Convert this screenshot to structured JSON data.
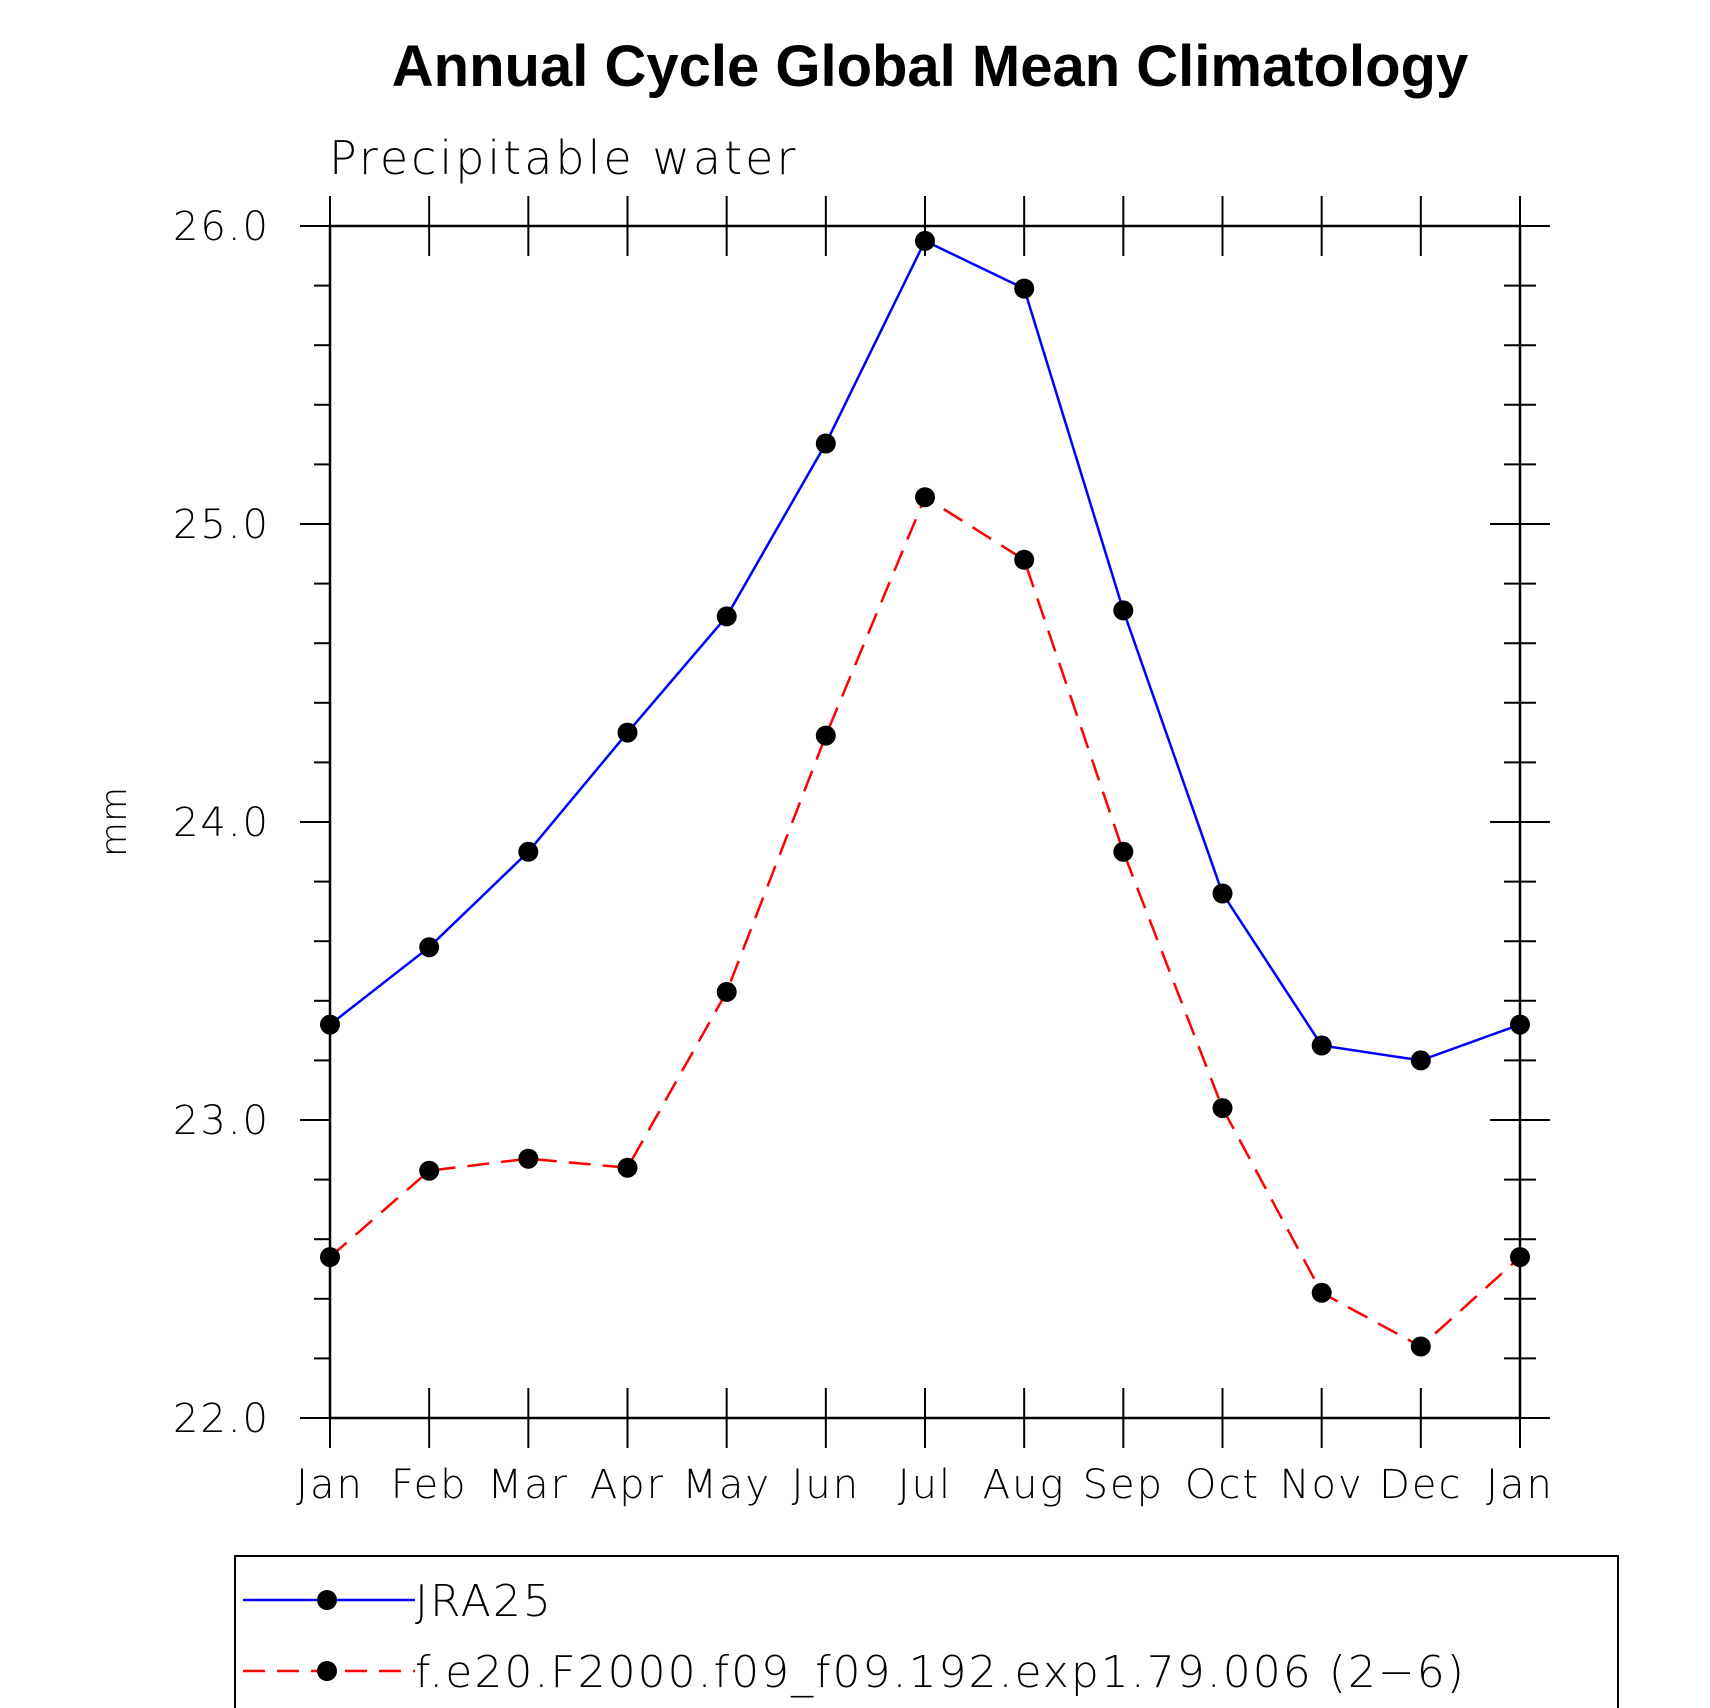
{
  "chart_data": {
    "type": "line",
    "title": "Annual Cycle Global Mean Climatology",
    "subtitle": "Precipitable water",
    "xlabel": "",
    "ylabel": "mm",
    "categories": [
      "Jan",
      "Feb",
      "Mar",
      "Apr",
      "May",
      "Jun",
      "Jul",
      "Aug",
      "Sep",
      "Oct",
      "Nov",
      "Dec",
      "Jan"
    ],
    "ylim": [
      22.0,
      26.0
    ],
    "yticks": [
      "22.0",
      "23.0",
      "24.0",
      "25.0",
      "26.0"
    ],
    "y_minor_step": 0.2,
    "grid": false,
    "legend_position": "bottom",
    "series": [
      {
        "name": "JRA25",
        "color": "#0000ff",
        "dash": "solid",
        "marker": "filled-circle",
        "values": [
          23.32,
          23.58,
          23.9,
          24.3,
          24.69,
          25.27,
          25.95,
          25.79,
          24.71,
          23.76,
          23.25,
          23.2,
          23.32
        ]
      },
      {
        "name": "f.e20.F2000.f09_f09.192.exp1.79.006 (2−6)",
        "color": "#ff0000",
        "dash": "dashed",
        "marker": "filled-circle",
        "values": [
          22.54,
          22.83,
          22.87,
          22.84,
          23.43,
          24.29,
          25.09,
          24.88,
          23.9,
          23.04,
          22.42,
          22.24,
          22.54
        ]
      }
    ]
  }
}
